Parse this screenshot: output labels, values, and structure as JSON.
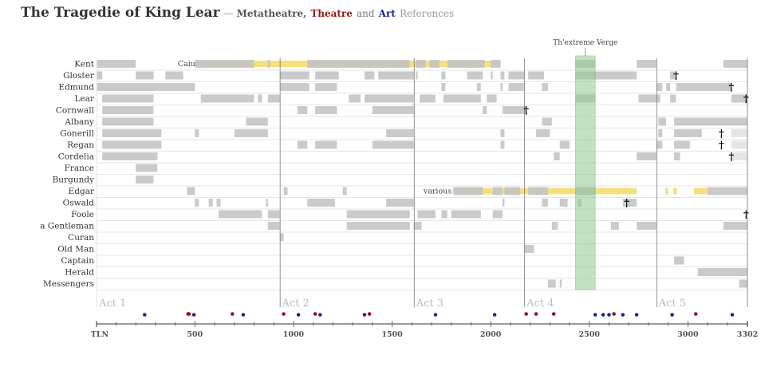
{
  "title": {
    "main": "The Tragedie of King Lear",
    "separator": "—",
    "sub_parts": [
      {
        "text": "Metatheatre,",
        "color": "#555555",
        "bold": true
      },
      {
        "text": "Theatre",
        "color": "#8b1a1a",
        "bold": true
      },
      {
        "text": "and",
        "color": "#777777",
        "bold": false
      },
      {
        "text": "Art",
        "color": "#1c2a8a",
        "bold": true
      },
      {
        "text": "References",
        "color": "#999999",
        "bold": false
      }
    ]
  },
  "colors": {
    "bar": "#c4c4c4",
    "bar_light": "#e2e2e2",
    "highlight": "#f2d650",
    "verge": "#8fcc8f",
    "theatre": "#8b1a1a",
    "art": "#1c2a8a",
    "act_label": "#bbbbbb",
    "row_line": "#e6e6e6",
    "divider": "#777777"
  },
  "chart_data": {
    "type": "timeline",
    "x_axis": {
      "range": [
        1,
        3302
      ],
      "start_label": "TLN",
      "ticks": [
        500,
        1000,
        1500,
        2000,
        2500,
        3000
      ],
      "end_label": "3302"
    },
    "characters": [
      "Kent",
      "Gloster",
      "Edmund",
      "Lear",
      "Cornwall",
      "Albany",
      "Gonerill",
      "Regan",
      "Cordelia",
      "France",
      "Burgundy",
      "Edgar",
      "Oswald",
      "Foole",
      "a Gentleman",
      "Curan",
      "Old Man",
      "Captain",
      "Herald",
      "Messengers"
    ],
    "acts": [
      {
        "label": "Act 1",
        "start": 1
      },
      {
        "label": "Act 2",
        "start": 930
      },
      {
        "label": "Act 3",
        "start": 1610
      },
      {
        "label": "Act 4",
        "start": 2170
      },
      {
        "label": "Act 5",
        "start": 2840
      }
    ],
    "verge": {
      "label": "Th'extreme Verge",
      "start": 2430,
      "end": 2530
    },
    "disguises": [
      {
        "character": "Kent",
        "label": "Caius",
        "start": 530,
        "end": 2050
      },
      {
        "character": "Edgar",
        "label": "various",
        "start": 1810,
        "end": 2740
      },
      {
        "character": "Edgar",
        "label": "",
        "start": 2885,
        "end": 2900
      },
      {
        "character": "Edgar",
        "label": "",
        "start": 2925,
        "end": 2945
      },
      {
        "character": "Edgar",
        "label": "",
        "start": 3030,
        "end": 3100
      }
    ],
    "speaking": [
      {
        "character": "Kent",
        "segments": [
          [
            1,
            200
          ],
          [
            500,
            800
          ],
          [
            870,
            880
          ],
          [
            1070,
            1590
          ],
          [
            1620,
            1670
          ],
          [
            1690,
            1740
          ],
          [
            1780,
            1970
          ],
          [
            2000,
            2050
          ],
          [
            2430,
            2530
          ],
          [
            2740,
            2840
          ],
          [
            3180,
            3302
          ]
        ]
      },
      {
        "character": "Gloster",
        "segments": [
          [
            1,
            30
          ],
          [
            200,
            290
          ],
          [
            350,
            440
          ],
          [
            930,
            1080
          ],
          [
            1110,
            1230
          ],
          [
            1360,
            1410
          ],
          [
            1430,
            1610
          ],
          [
            1620,
            1630
          ],
          [
            1750,
            1770
          ],
          [
            1880,
            1960
          ],
          [
            2000,
            2010
          ],
          [
            2050,
            2070
          ],
          [
            2090,
            2170
          ],
          [
            2190,
            2270
          ],
          [
            2430,
            2740
          ],
          [
            2910,
            2940
          ]
        ]
      },
      {
        "character": "Edmund",
        "segments": [
          [
            1,
            500
          ],
          [
            930,
            1080
          ],
          [
            1110,
            1220
          ],
          [
            1750,
            1770
          ],
          [
            1930,
            1950
          ],
          [
            2050,
            2060
          ],
          [
            2090,
            2170
          ],
          [
            2260,
            2290
          ],
          [
            2840,
            2870
          ],
          [
            2890,
            2910
          ],
          [
            2940,
            3220
          ]
        ]
      },
      {
        "character": "Lear",
        "segments": [
          [
            30,
            290
          ],
          [
            530,
            800
          ],
          [
            820,
            840
          ],
          [
            870,
            930
          ],
          [
            1280,
            1340
          ],
          [
            1360,
            1610
          ],
          [
            1640,
            1720
          ],
          [
            1760,
            1950
          ],
          [
            1980,
            2030
          ],
          [
            2430,
            2530
          ],
          [
            2750,
            2860
          ],
          [
            2910,
            2940
          ],
          [
            3220,
            3302
          ]
        ]
      },
      {
        "character": "Cornwall",
        "segments": [
          [
            30,
            290
          ],
          [
            1020,
            1070
          ],
          [
            1110,
            1220
          ],
          [
            1400,
            1610
          ],
          [
            1960,
            1980
          ],
          [
            2060,
            2180
          ]
        ]
      },
      {
        "character": "Albany",
        "segments": [
          [
            30,
            290
          ],
          [
            760,
            870
          ],
          [
            2260,
            2310
          ],
          [
            2850,
            2890
          ],
          [
            2930,
            3302
          ]
        ]
      },
      {
        "character": "Gonerill",
        "segments": [
          [
            30,
            330
          ],
          [
            500,
            520
          ],
          [
            700,
            870
          ],
          [
            1470,
            1610
          ],
          [
            2050,
            2070
          ],
          [
            2230,
            2300
          ],
          [
            2850,
            2870
          ],
          [
            2930,
            3070
          ],
          [
            3220,
            3302
          ]
        ]
      },
      {
        "character": "Regan",
        "segments": [
          [
            30,
            330
          ],
          [
            1020,
            1070
          ],
          [
            1110,
            1220
          ],
          [
            1400,
            1610
          ],
          [
            2050,
            2070
          ],
          [
            2350,
            2400
          ],
          [
            2840,
            2870
          ],
          [
            2930,
            3010
          ],
          [
            3220,
            3302
          ]
        ]
      },
      {
        "character": "Cordelia",
        "segments": [
          [
            30,
            310
          ],
          [
            2320,
            2350
          ],
          [
            2740,
            2840
          ],
          [
            2930,
            2960
          ],
          [
            3220,
            3302
          ]
        ]
      },
      {
        "character": "France",
        "segments": [
          [
            200,
            310
          ]
        ]
      },
      {
        "character": "Burgundy",
        "segments": [
          [
            200,
            290
          ]
        ]
      },
      {
        "character": "Edgar",
        "segments": [
          [
            460,
            500
          ],
          [
            950,
            970
          ],
          [
            1250,
            1270
          ],
          [
            1810,
            1960
          ],
          [
            2010,
            2060
          ],
          [
            2070,
            2150
          ],
          [
            2190,
            2290
          ],
          [
            2430,
            2530
          ],
          [
            3100,
            3302
          ]
        ]
      },
      {
        "character": "Oswald",
        "segments": [
          [
            500,
            520
          ],
          [
            570,
            590
          ],
          [
            610,
            630
          ],
          [
            860,
            870
          ],
          [
            1070,
            1210
          ],
          [
            1470,
            1610
          ],
          [
            2060,
            2070
          ],
          [
            2260,
            2290
          ],
          [
            2350,
            2390
          ],
          [
            2440,
            2460
          ],
          [
            2670,
            2740
          ]
        ]
      },
      {
        "character": "Foole",
        "segments": [
          [
            620,
            840
          ],
          [
            870,
            930
          ],
          [
            1270,
            1590
          ],
          [
            1630,
            1720
          ],
          [
            1750,
            1780
          ],
          [
            1800,
            1950
          ],
          [
            2010,
            2060
          ]
        ]
      },
      {
        "character": "a Gentleman",
        "segments": [
          [
            870,
            930
          ],
          [
            1270,
            1590
          ],
          [
            1610,
            1650
          ],
          [
            2310,
            2340
          ],
          [
            2610,
            2650
          ],
          [
            2740,
            2840
          ],
          [
            3180,
            3302
          ]
        ]
      },
      {
        "character": "Curan",
        "segments": [
          [
            930,
            950
          ]
        ]
      },
      {
        "character": "Old Man",
        "segments": [
          [
            2170,
            2220
          ]
        ]
      },
      {
        "character": "Captain",
        "segments": [
          [
            2930,
            2980
          ]
        ]
      },
      {
        "character": "Herald",
        "segments": [
          [
            3050,
            3302
          ]
        ]
      },
      {
        "character": "Messengers",
        "segments": [
          [
            2290,
            2330
          ],
          [
            2350,
            2360
          ],
          [
            3260,
            3302
          ]
        ]
      }
    ],
    "deaths": [
      {
        "character": "Gloster",
        "x": 2940
      },
      {
        "character": "Edmund",
        "x": 3220
      },
      {
        "character": "Lear",
        "x": 3295
      },
      {
        "character": "Cornwall",
        "x": 2180
      },
      {
        "character": "Gonerill",
        "x": 3170
      },
      {
        "character": "Regan",
        "x": 3170
      },
      {
        "character": "Cordelia",
        "x": 3220
      },
      {
        "character": "Oswald",
        "x": 2690
      },
      {
        "character": "Foole",
        "x": 3295
      }
    ],
    "references": [
      {
        "type": "art",
        "x": 245
      },
      {
        "type": "theatre",
        "x": 465
      },
      {
        "type": "theatre",
        "x": 470
      },
      {
        "type": "art",
        "x": 495
      },
      {
        "type": "theatre",
        "x": 690
      },
      {
        "type": "art",
        "x": 745
      },
      {
        "type": "theatre",
        "x": 950
      },
      {
        "type": "art",
        "x": 1025
      },
      {
        "type": "theatre",
        "x": 1110
      },
      {
        "type": "art",
        "x": 1135
      },
      {
        "type": "art",
        "x": 1360
      },
      {
        "type": "theatre",
        "x": 1385
      },
      {
        "type": "art",
        "x": 1720
      },
      {
        "type": "art",
        "x": 2020
      },
      {
        "type": "theatre",
        "x": 2180
      },
      {
        "type": "theatre",
        "x": 2230
      },
      {
        "type": "theatre",
        "x": 2320
      },
      {
        "type": "art",
        "x": 2530
      },
      {
        "type": "art",
        "x": 2570
      },
      {
        "type": "art",
        "x": 2600
      },
      {
        "type": "theatre",
        "x": 2625
      },
      {
        "type": "art",
        "x": 2670
      },
      {
        "type": "art",
        "x": 2740
      },
      {
        "type": "art",
        "x": 2920
      },
      {
        "type": "theatre",
        "x": 3040
      },
      {
        "type": "art",
        "x": 3225
      }
    ]
  }
}
